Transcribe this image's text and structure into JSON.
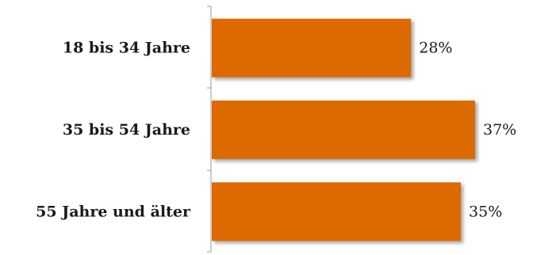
{
  "chart_data": {
    "type": "bar",
    "orientation": "horizontal",
    "categories": [
      "18 bis 34 Jahre",
      "35 bis 54 Jahre",
      "55 Jahre und älter"
    ],
    "values": [
      28,
      37,
      35
    ],
    "value_labels": [
      "28%",
      "37%",
      "35%"
    ],
    "unit": "%",
    "title": "",
    "xlabel": "",
    "ylabel": "",
    "xlim": [
      0,
      37
    ],
    "grid": false,
    "legend": "none",
    "bar_color": "#DD6A00"
  }
}
